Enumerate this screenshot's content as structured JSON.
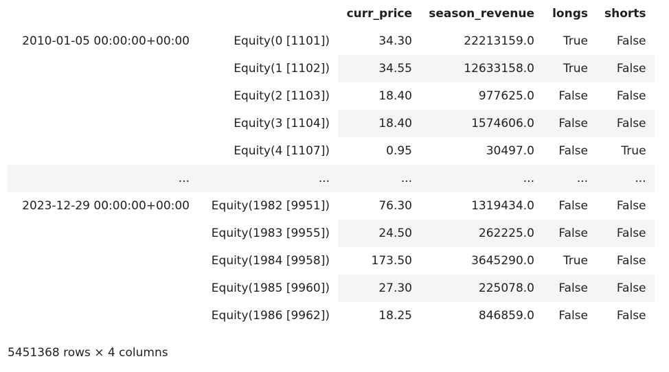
{
  "dataframe": {
    "columns": [
      "curr_price",
      "season_revenue",
      "longs",
      "shorts"
    ],
    "groups": [
      {
        "date": "2010-01-05 00:00:00+00:00",
        "rows": [
          {
            "asset": "Equity(0 [1101])",
            "curr_price": "34.30",
            "season_revenue": "22213159.0",
            "longs": "True",
            "shorts": "False"
          },
          {
            "asset": "Equity(1 [1102])",
            "curr_price": "34.55",
            "season_revenue": "12633158.0",
            "longs": "True",
            "shorts": "False"
          },
          {
            "asset": "Equity(2 [1103])",
            "curr_price": "18.40",
            "season_revenue": "977625.0",
            "longs": "False",
            "shorts": "False"
          },
          {
            "asset": "Equity(3 [1104])",
            "curr_price": "18.40",
            "season_revenue": "1574606.0",
            "longs": "False",
            "shorts": "False"
          },
          {
            "asset": "Equity(4 [1107])",
            "curr_price": "0.95",
            "season_revenue": "30497.0",
            "longs": "False",
            "shorts": "True"
          }
        ]
      },
      {
        "date": "2023-12-29 00:00:00+00:00",
        "rows": [
          {
            "asset": "Equity(1982 [9951])",
            "curr_price": "76.30",
            "season_revenue": "1319434.0",
            "longs": "False",
            "shorts": "False"
          },
          {
            "asset": "Equity(1983 [9955])",
            "curr_price": "24.50",
            "season_revenue": "262225.0",
            "longs": "False",
            "shorts": "False"
          },
          {
            "asset": "Equity(1984 [9958])",
            "curr_price": "173.50",
            "season_revenue": "3645290.0",
            "longs": "True",
            "shorts": "False"
          },
          {
            "asset": "Equity(1985 [9960])",
            "curr_price": "27.30",
            "season_revenue": "225078.0",
            "longs": "False",
            "shorts": "False"
          },
          {
            "asset": "Equity(1986 [9962])",
            "curr_price": "18.25",
            "season_revenue": "846859.0",
            "longs": "False",
            "shorts": "False"
          }
        ]
      }
    ],
    "ellipsis": "...",
    "shape_text": "5451368 rows × 4 columns"
  }
}
